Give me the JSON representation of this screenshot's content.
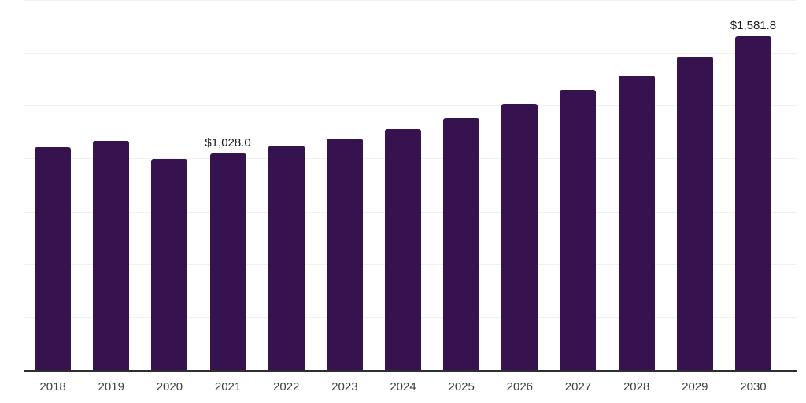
{
  "chart_data": {
    "type": "bar",
    "categories": [
      "2018",
      "2019",
      "2020",
      "2021",
      "2022",
      "2023",
      "2024",
      "2025",
      "2026",
      "2027",
      "2028",
      "2029",
      "2030"
    ],
    "values": [
      1057,
      1088,
      1000,
      1028.0,
      1064,
      1100,
      1145,
      1197,
      1261,
      1328,
      1397,
      1486,
      1581.8
    ],
    "data_labels": [
      "",
      "",
      "",
      "$1,028.0",
      "",
      "",
      "",
      "",
      "",
      "",
      "",
      "",
      "$1,581.8"
    ],
    "ylim": [
      0,
      1750
    ],
    "gridline_interval": 250,
    "grid": "horizontal",
    "legend": "none",
    "y_axis_tick_labels_visible": false,
    "colors": {
      "bar": "#36124e",
      "axis_line": "#2e2e2e",
      "gridline": "#f1f1f1",
      "data_label_text": "#1b1b1b",
      "tick_label_text": "#3e3e3e",
      "background": "#ffffff"
    }
  }
}
